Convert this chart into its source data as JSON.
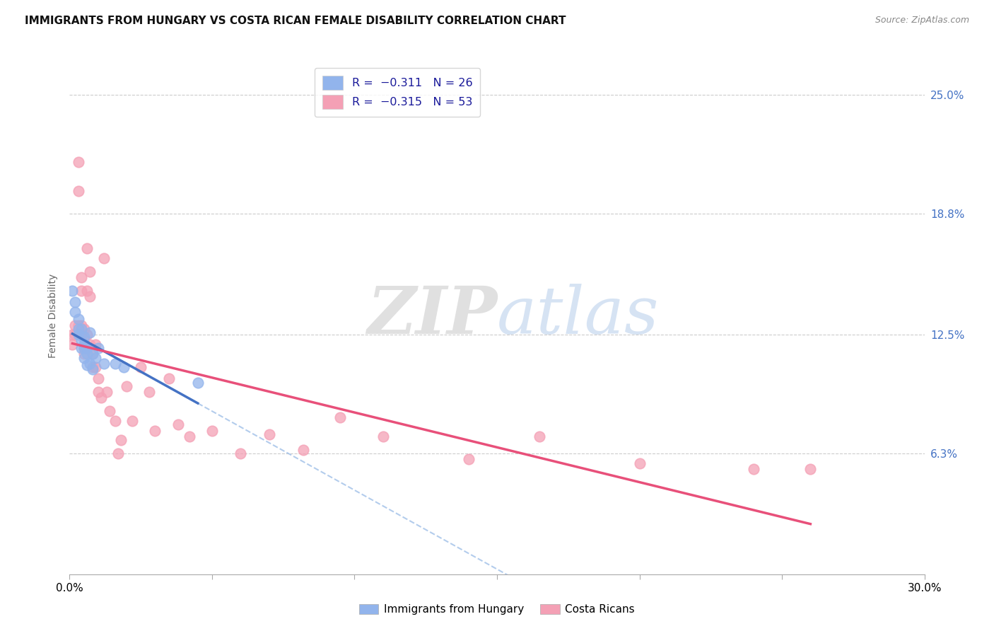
{
  "title": "IMMIGRANTS FROM HUNGARY VS COSTA RICAN FEMALE DISABILITY CORRELATION CHART",
  "source": "Source: ZipAtlas.com",
  "ylabel": "Female Disability",
  "ytick_labels": [
    "6.3%",
    "12.5%",
    "18.8%",
    "25.0%"
  ],
  "ytick_values": [
    0.063,
    0.125,
    0.188,
    0.25
  ],
  "xlim": [
    0.0,
    0.3
  ],
  "ylim": [
    0.0,
    0.27
  ],
  "color_hungary": "#92b4ec",
  "color_costa_rica": "#f4a0b5",
  "color_trendline_hungary": "#4472c4",
  "color_trendline_costa_rica": "#e8507a",
  "color_trendline_dashed": "#a0c0e8",
  "watermark_zip": "ZIP",
  "watermark_atlas": "atlas",
  "hungary_x": [
    0.001,
    0.002,
    0.002,
    0.003,
    0.003,
    0.003,
    0.004,
    0.004,
    0.004,
    0.005,
    0.005,
    0.005,
    0.005,
    0.006,
    0.006,
    0.006,
    0.007,
    0.007,
    0.008,
    0.008,
    0.009,
    0.01,
    0.012,
    0.016,
    0.019,
    0.045
  ],
  "hungary_y": [
    0.148,
    0.142,
    0.137,
    0.133,
    0.128,
    0.125,
    0.122,
    0.118,
    0.128,
    0.124,
    0.118,
    0.113,
    0.12,
    0.115,
    0.109,
    0.118,
    0.126,
    0.11,
    0.115,
    0.107,
    0.113,
    0.118,
    0.11,
    0.11,
    0.108,
    0.1
  ],
  "costa_rica_x": [
    0.001,
    0.001,
    0.002,
    0.002,
    0.003,
    0.003,
    0.003,
    0.004,
    0.004,
    0.004,
    0.004,
    0.005,
    0.005,
    0.005,
    0.005,
    0.006,
    0.006,
    0.006,
    0.007,
    0.007,
    0.007,
    0.008,
    0.008,
    0.009,
    0.009,
    0.01,
    0.01,
    0.011,
    0.012,
    0.013,
    0.014,
    0.016,
    0.017,
    0.018,
    0.02,
    0.022,
    0.025,
    0.028,
    0.03,
    0.035,
    0.038,
    0.042,
    0.05,
    0.06,
    0.07,
    0.082,
    0.095,
    0.11,
    0.14,
    0.165,
    0.2,
    0.24,
    0.26
  ],
  "costa_rica_y": [
    0.125,
    0.12,
    0.13,
    0.125,
    0.215,
    0.2,
    0.13,
    0.155,
    0.148,
    0.13,
    0.125,
    0.128,
    0.123,
    0.118,
    0.115,
    0.17,
    0.148,
    0.125,
    0.158,
    0.145,
    0.12,
    0.115,
    0.108,
    0.12,
    0.108,
    0.102,
    0.095,
    0.092,
    0.165,
    0.095,
    0.085,
    0.08,
    0.063,
    0.07,
    0.098,
    0.08,
    0.108,
    0.095,
    0.075,
    0.102,
    0.078,
    0.072,
    0.075,
    0.063,
    0.073,
    0.065,
    0.082,
    0.072,
    0.06,
    0.072,
    0.058,
    0.055,
    0.055
  ]
}
